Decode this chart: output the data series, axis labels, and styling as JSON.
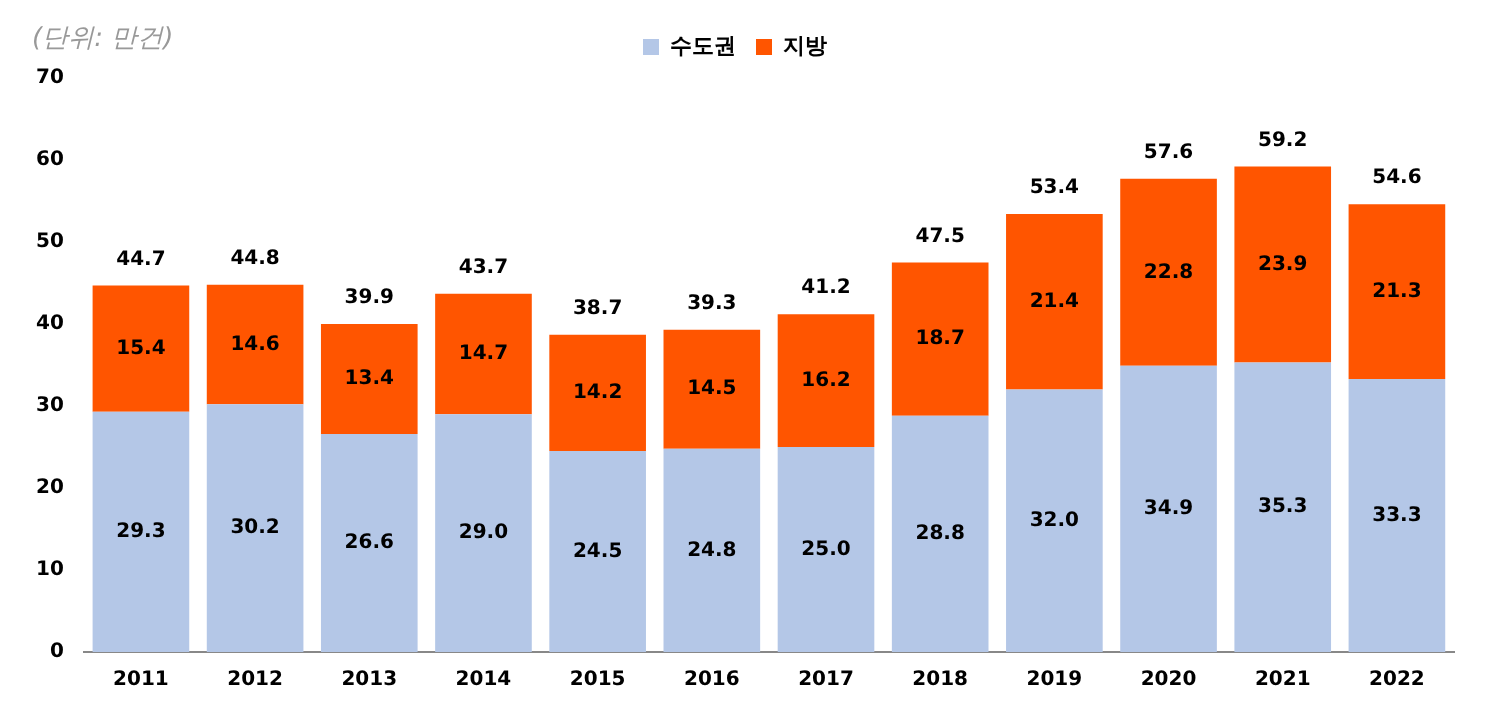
{
  "chart_data": {
    "type": "bar",
    "stacked": true,
    "annotations": [
      "(단위: 만건)"
    ],
    "categories": [
      "2011",
      "2012",
      "2013",
      "2014",
      "2015",
      "2016",
      "2017",
      "2018",
      "2019",
      "2020",
      "2021",
      "2022"
    ],
    "series": [
      {
        "name": "수도권",
        "color": "#b4c7e7",
        "values": [
          29.3,
          30.2,
          26.6,
          29.0,
          24.5,
          24.8,
          25.0,
          28.8,
          32.0,
          34.9,
          35.3,
          33.3
        ],
        "value_labels": [
          "29.3",
          "30.2",
          "26.6",
          "29.0",
          "24.5",
          "24.8",
          "25.0",
          "28.8",
          "32.0",
          "34.9",
          "35.3",
          "33.3"
        ]
      },
      {
        "name": "지방",
        "color": "#ff5500",
        "values": [
          15.4,
          14.6,
          13.4,
          14.7,
          14.2,
          14.5,
          16.2,
          18.7,
          21.4,
          22.8,
          23.9,
          21.3
        ],
        "value_labels": [
          "15.4",
          "14.6",
          "13.4",
          "14.7",
          "14.2",
          "14.5",
          "16.2",
          "18.7",
          "21.4",
          "22.8",
          "23.9",
          "21.3"
        ]
      }
    ],
    "totals": [
      "44.7",
      "44.8",
      "39.9",
      "43.7",
      "38.7",
      "39.3",
      "41.2",
      "47.5",
      "53.4",
      "57.6",
      "59.2",
      "54.6"
    ],
    "ylim": [
      0,
      70
    ],
    "yticks": [
      0,
      10,
      20,
      30,
      40,
      50,
      60,
      70
    ],
    "grid": false,
    "legend": "top"
  }
}
